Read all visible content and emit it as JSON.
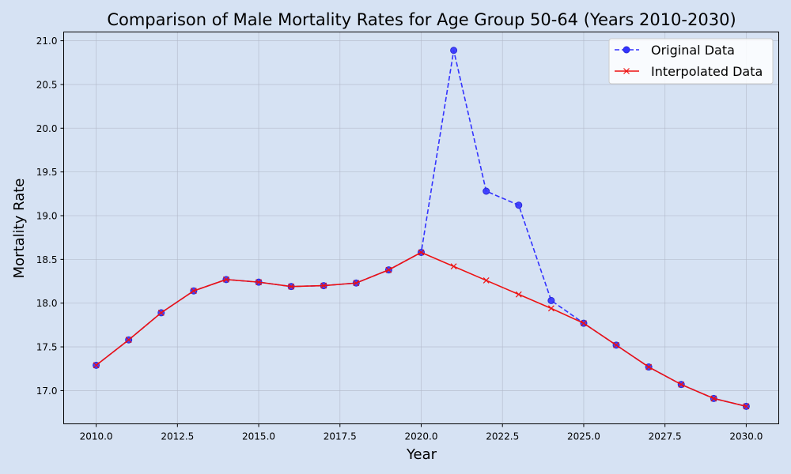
{
  "chart_data": {
    "type": "line",
    "title": "Comparison of Male Mortality Rates for Age Group 50-64 (Years 2010-2030)",
    "xlabel": "Year",
    "ylabel": "Mortality Rate",
    "xlim": [
      2009,
      2031
    ],
    "ylim": [
      16.62,
      21.1
    ],
    "xticks": [
      2010.0,
      2012.5,
      2015.0,
      2017.5,
      2020.0,
      2022.5,
      2025.0,
      2027.5,
      2030.0
    ],
    "xtick_labels": [
      "2010.0",
      "2012.5",
      "2015.0",
      "2017.5",
      "2020.0",
      "2022.5",
      "2025.0",
      "2027.5",
      "2030.0"
    ],
    "yticks": [
      17.0,
      17.5,
      18.0,
      18.5,
      19.0,
      19.5,
      20.0,
      20.5,
      21.0
    ],
    "ytick_labels": [
      "17.0",
      "17.5",
      "18.0",
      "18.5",
      "19.0",
      "19.5",
      "20.0",
      "20.5",
      "21.0"
    ],
    "grid": true,
    "legend_position": "top-right",
    "x": [
      2010,
      2011,
      2012,
      2013,
      2014,
      2015,
      2016,
      2017,
      2018,
      2019,
      2020,
      2021,
      2022,
      2023,
      2024,
      2025,
      2026,
      2027,
      2028,
      2029,
      2030
    ],
    "series": [
      {
        "name": "Original Data",
        "color": "#3333ff",
        "style": "dashed",
        "marker": "circle",
        "values": [
          17.29,
          17.58,
          17.89,
          18.14,
          18.27,
          18.24,
          18.19,
          18.2,
          18.23,
          18.38,
          18.58,
          20.89,
          19.28,
          19.12,
          18.03,
          17.77,
          17.52,
          17.27,
          17.07,
          16.91,
          16.82
        ]
      },
      {
        "name": "Interpolated Data",
        "color": "#ee1111",
        "style": "solid",
        "marker": "x",
        "values": [
          17.29,
          17.58,
          17.89,
          18.14,
          18.27,
          18.24,
          18.19,
          18.2,
          18.23,
          18.38,
          18.58,
          18.42,
          18.26,
          18.1,
          17.94,
          17.77,
          17.52,
          17.27,
          17.07,
          16.91,
          16.82
        ]
      }
    ]
  }
}
